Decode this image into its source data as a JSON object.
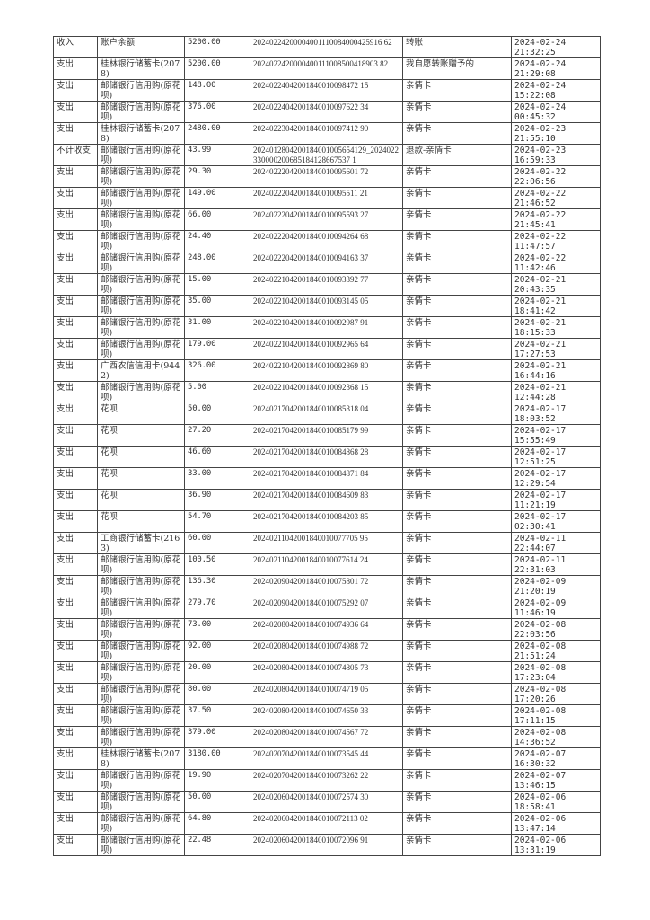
{
  "rows": [
    [
      "收入",
      "账户余额",
      "5200.00",
      "20240224200004001110084000425916 62",
      "转账",
      "2024-02-24",
      "21:32:25"
    ],
    [
      "支出",
      "桂林银行储蓄卡(2078)",
      "5200.00",
      "2024022420000400111008500418903 82",
      "我自愿转账赠予的",
      "2024-02-24",
      "21:29:08"
    ],
    [
      "支出",
      "邮储银行信用购(原花呗)",
      "148.00",
      "20240224042001840010098472 15",
      "亲情卡",
      "2024-02-24",
      "15:22:08"
    ],
    [
      "支出",
      "邮储银行信用购(原花呗)",
      "376.00",
      "20240224042001840010097622 34",
      "亲情卡",
      "2024-02-24",
      "00:45:32"
    ],
    [
      "支出",
      "桂林银行储蓄卡(2078)",
      "2480.00",
      "20240223042001840010097412 90",
      "亲情卡",
      "2024-02-23",
      "21:55:10"
    ],
    [
      "不计收支",
      "邮储银行信用购(原花呗)",
      "43.99",
      "2024012804200184001005654129_2024022330000200685184128667537 1",
      "退款-亲情卡",
      "2024-02-23",
      "16:59:33"
    ],
    [
      "支出",
      "邮储银行信用购(原花呗)",
      "29.30",
      "20240222042001840010095601 72",
      "亲情卡",
      "2024-02-22",
      "22:06:56"
    ],
    [
      "支出",
      "邮储银行信用购(原花呗)",
      "149.00",
      "20240222042001840010095511 21",
      "亲情卡",
      "2024-02-22",
      "21:46:52"
    ],
    [
      "支出",
      "邮储银行信用购(原花呗)",
      "66.00",
      "20240222042001840010095593 27",
      "亲情卡",
      "2024-02-22",
      "21:45:41"
    ],
    [
      "支出",
      "邮储银行信用购(原花呗)",
      "24.40",
      "20240222042001840010094264 68",
      "亲情卡",
      "2024-02-22",
      "11:47:57"
    ],
    [
      "支出",
      "邮储银行信用购(原花呗)",
      "248.00",
      "20240222042001840010094163 37",
      "亲情卡",
      "2024-02-22",
      "11:42:46"
    ],
    [
      "支出",
      "邮储银行信用购(原花呗)",
      "15.00",
      "20240221042001840010093392 77",
      "亲情卡",
      "2024-02-21",
      "20:43:35"
    ],
    [
      "支出",
      "邮储银行信用购(原花呗)",
      "35.00",
      "20240221042001840010093145 05",
      "亲情卡",
      "2024-02-21",
      "18:41:42"
    ],
    [
      "支出",
      "邮储银行信用购(原花呗)",
      "31.00",
      "20240221042001840010092987 91",
      "亲情卡",
      "2024-02-21",
      "18:15:33"
    ],
    [
      "支出",
      "邮储银行信用购(原花呗)",
      "179.00",
      "20240221042001840010092965 64",
      "亲情卡",
      "2024-02-21",
      "17:27:53"
    ],
    [
      "支出",
      "广西农信信用卡(9442)",
      "326.00",
      "20240221042001840010092869 80",
      "亲情卡",
      "2024-02-21",
      "16:44:16"
    ],
    [
      "支出",
      "邮储银行信用购(原花呗)",
      "5.00",
      "20240221042001840010092368 15",
      "亲情卡",
      "2024-02-21",
      "12:44:28"
    ],
    [
      "支出",
      "花呗",
      "50.00",
      "20240217042001840010085318 04",
      "亲情卡",
      "2024-02-17",
      "18:03:52"
    ],
    [
      "支出",
      "花呗",
      "27.20",
      "20240217042001840010085179 99",
      "亲情卡",
      "2024-02-17",
      "15:55:49"
    ],
    [
      "支出",
      "花呗",
      "46.60",
      "20240217042001840010084868 28",
      "亲情卡",
      "2024-02-17",
      "12:51:25"
    ],
    [
      "支出",
      "花呗",
      "33.00",
      "20240217042001840010084871 84",
      "亲情卡",
      "2024-02-17",
      "12:29:54"
    ],
    [
      "支出",
      "花呗",
      "36.90",
      "20240217042001840010084609 83",
      "亲情卡",
      "2024-02-17",
      "11:21:19"
    ],
    [
      "支出",
      "花呗",
      "54.70",
      "20240217042001840010084203 85",
      "亲情卡",
      "2024-02-17",
      "02:30:41"
    ],
    [
      "支出",
      "工商银行储蓄卡(2163)",
      "60.00",
      "20240211042001840010077705 95",
      "亲情卡",
      "2024-02-11",
      "22:44:07"
    ],
    [
      "支出",
      "邮储银行信用购(原花呗)",
      "100.50",
      "20240211042001840010077614 24",
      "亲情卡",
      "2024-02-11",
      "22:31:03"
    ],
    [
      "支出",
      "邮储银行信用购(原花呗)",
      "136.30",
      "20240209042001840010075801 72",
      "亲情卡",
      "2024-02-09",
      "21:20:19"
    ],
    [
      "支出",
      "邮储银行信用购(原花呗)",
      "279.70",
      "20240209042001840010075292 07",
      "亲情卡",
      "2024-02-09",
      "11:46:19"
    ],
    [
      "支出",
      "邮储银行信用购(原花呗)",
      "73.00",
      "20240208042001840010074936 64",
      "亲情卡",
      "2024-02-08",
      "22:03:56"
    ],
    [
      "支出",
      "邮储银行信用购(原花呗)",
      "92.00",
      "20240208042001840010074988 72",
      "亲情卡",
      "2024-02-08",
      "21:51:24"
    ],
    [
      "支出",
      "邮储银行信用购(原花呗)",
      "20.00",
      "20240208042001840010074805 73",
      "亲情卡",
      "2024-02-08",
      "17:23:04"
    ],
    [
      "支出",
      "邮储银行信用购(原花呗)",
      "80.00",
      "20240208042001840010074719 05",
      "亲情卡",
      "2024-02-08",
      "17:20:26"
    ],
    [
      "支出",
      "邮储银行信用购(原花呗)",
      "37.50",
      "20240208042001840010074650 33",
      "亲情卡",
      "2024-02-08",
      "17:11:15"
    ],
    [
      "支出",
      "邮储银行信用购(原花呗)",
      "379.00",
      "20240208042001840010074567 72",
      "亲情卡",
      "2024-02-08",
      "14:36:52"
    ],
    [
      "支出",
      "桂林银行储蓄卡(2078)",
      "3180.00",
      "20240207042001840010073545 44",
      "亲情卡",
      "2024-02-07",
      "16:30:32"
    ],
    [
      "支出",
      "邮储银行信用购(原花呗)",
      "19.90",
      "20240207042001840010073262 22",
      "亲情卡",
      "2024-02-07",
      "13:46:15"
    ],
    [
      "支出",
      "邮储银行信用购(原花呗)",
      "50.00",
      "20240206042001840010072574 30",
      "亲情卡",
      "2024-02-06",
      "18:58:41"
    ],
    [
      "支出",
      "邮储银行信用购(原花呗)",
      "64.80",
      "20240206042001840010072113 02",
      "亲情卡",
      "2024-02-06",
      "13:47:14"
    ],
    [
      "支出",
      "邮储银行信用购(原花呗)",
      "22.48",
      "20240206042001840010072096 91",
      "亲情卡",
      "2024-02-06",
      "13:31:19"
    ]
  ]
}
